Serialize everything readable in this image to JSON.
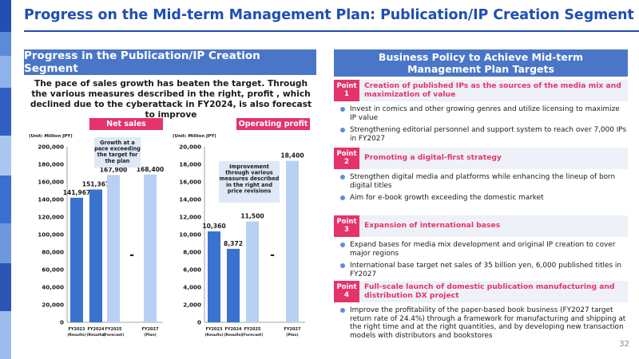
{
  "page": {
    "title": "Progress on the Mid-term Management Plan: Publication/IP Creation Segment",
    "page_number": "32"
  },
  "left_panel": {
    "header": "Progress in the Publication/IP Creation Segment",
    "lead_text": "The pace of sales growth has beaten the target. Through the various measures described in the right, profit , which declined due to the cyberattack in FY2024, is also forecast to improve"
  },
  "chart_data": [
    {
      "type": "bar",
      "badge": "Net sales",
      "unit_label": "(Unit: Million JPY)",
      "categories": [
        "FY2023",
        "FY2024",
        "FY2025",
        "FY2027"
      ],
      "category_sublabels": [
        "(Results)",
        "(Results)",
        "(Forecast)",
        "(Plan)"
      ],
      "values": [
        141967,
        151367,
        167900,
        168400
      ],
      "value_labels": [
        "141,967",
        "151,367",
        "167,900",
        "168,400"
      ],
      "tick_labels": [
        "0",
        "20,000",
        "40,000",
        "60,000",
        "80,000",
        "100,000",
        "120,000",
        "140,000",
        "160,000",
        "180,000",
        "200,000"
      ],
      "ylim": [
        0,
        200000
      ],
      "annotation": "Growth at a pace exceeding the target for the plan",
      "break_mark": "-",
      "colors": [
        "#3a72d0",
        "#3a72d0",
        "#b8d0f4",
        "#b8d0f4"
      ]
    },
    {
      "type": "bar",
      "badge": "Operating profit",
      "unit_label": "(Unit: Million JPY)",
      "categories": [
        "FY2023",
        "FY2024",
        "FY2025",
        "FY2027"
      ],
      "category_sublabels": [
        "(Results)",
        "(Results)",
        "(Forecast)",
        "(Plan)"
      ],
      "values": [
        10360,
        8372,
        11500,
        18400
      ],
      "value_labels": [
        "10,360",
        "8,372",
        "11,500",
        "18,400"
      ],
      "tick_labels": [
        "0",
        "2,000",
        "4,000",
        "6,000",
        "8,000",
        "10,000",
        "12,000",
        "14,000",
        "16,000",
        "18,000",
        "20,000"
      ],
      "ylim": [
        0,
        20000
      ],
      "annotation": "Improvement through various measures described in the right and price revisions",
      "break_mark": "-",
      "colors": [
        "#3a72d0",
        "#3a72d0",
        "#b8d0f4",
        "#b8d0f4"
      ]
    }
  ],
  "right_panel": {
    "header_line1": "Business Policy to Achieve Mid-term",
    "header_line2": "Management Plan Targets",
    "points": [
      {
        "badge_word": "Point",
        "badge_num": "1",
        "title": "Creation of published IPs as the sources of the media mix and maximization of value",
        "items": [
          "Invest in comics and other growing genres and utilize licensing to maximize IP value",
          "Strengthening editorial personnel and support system to reach over 7,000 IPs in FY2027"
        ]
      },
      {
        "badge_word": "Point",
        "badge_num": "2",
        "title": "Promoting a digital-first strategy",
        "items": [
          "Strengthen digital media and platforms while enhancing the lineup of born digital titles",
          "Aim for e-book growth exceeding the domestic market"
        ]
      },
      {
        "badge_word": "Point",
        "badge_num": "3",
        "title": "Expansion of international bases",
        "items": [
          "Expand bases for media mix development and original IP creation to cover major regions",
          "International base target net sales of 35 billion yen, 6,000 published titles in FY2027"
        ]
      },
      {
        "badge_word": "Point",
        "badge_num": "4",
        "title": "Full-scale launch of domestic publication manufacturing and distribution DX project",
        "items": [
          "Improve the profitability of the paper-based book business (FY2027 target return rate of 24.4%) through a framework for manufacturing and shipping at the right time and at the right quantities, and by developing new transaction models with distributors and bookstores"
        ]
      }
    ]
  },
  "colors": {
    "title_blue": "#1f4fb2",
    "header_blue": "#4a76c8",
    "accent_pink": "#e5336c",
    "bar_results": "#3a72d0",
    "bar_plan": "#b8d0f4"
  }
}
